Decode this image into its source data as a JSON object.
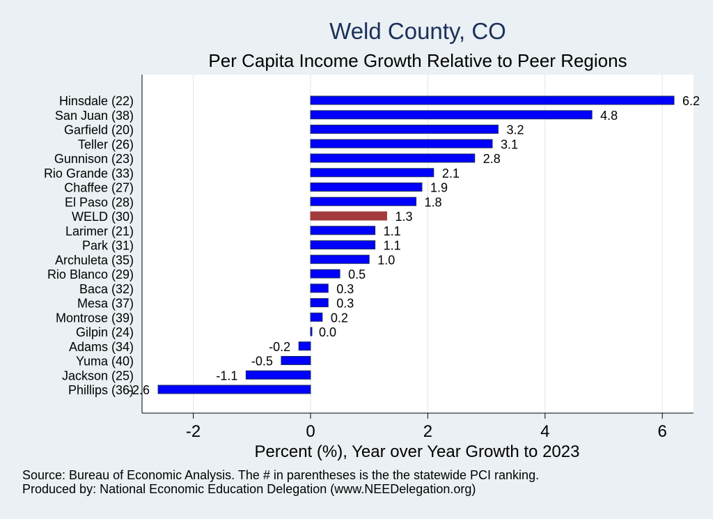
{
  "title": "Weld County, CO",
  "subtitle": "Per Capita Income Growth Relative to Peer Regions",
  "notes": {
    "source": "Source: Bureau of Economic Analysis. The # in parentheses is the the statewide PCI ranking.",
    "produced_by": "Produced by: National Economic Education Delegation (www.NEEDelegation.org)"
  },
  "colors": {
    "bar": "#0000ff",
    "highlight": "#a23a3e",
    "bar_border": "#1a2f5a",
    "plot_bg": "#ffffff",
    "page_bg": "#eaf0f3",
    "grid": "#dde6ec"
  },
  "chart_data": {
    "type": "bar",
    "orientation": "horizontal",
    "title": "Weld County, CO",
    "subtitle": "Per Capita Income Growth Relative to Peer Regions",
    "xlabel": "Percent (%), Year over Year Growth to 2023",
    "ylabel": "",
    "xlim": [
      -2.9,
      6.55
    ],
    "xticks": [
      -2,
      0,
      2,
      4,
      6
    ],
    "xtick_labels": [
      "-2",
      "0",
      "2",
      "4",
      "6"
    ],
    "grid": true,
    "highlight_category": "WELD (30)",
    "categories": [
      "Hinsdale (22)",
      "San Juan (38)",
      "Garfield (20)",
      "Teller (26)",
      "Gunnison (23)",
      "Rio Grande (33)",
      "Chaffee (27)",
      "El Paso (28)",
      "WELD (30)",
      "Larimer (21)",
      "Park (31)",
      "Archuleta (35)",
      "Rio Blanco (29)",
      "Baca (32)",
      "Mesa (37)",
      "Montrose (39)",
      "Gilpin (24)",
      "Adams (34)",
      "Yuma (40)",
      "Jackson (25)",
      "Phillips (36)"
    ],
    "values": [
      6.2,
      4.8,
      3.2,
      3.1,
      2.8,
      2.1,
      1.9,
      1.8,
      1.3,
      1.1,
      1.1,
      1.0,
      0.5,
      0.3,
      0.3,
      0.2,
      0.0,
      -0.2,
      -0.5,
      -1.1,
      -2.6
    ],
    "value_labels": [
      "6.2",
      "4.8",
      "3.2",
      "3.1",
      "2.8",
      "2.1",
      "1.9",
      "1.8",
      "1.3",
      "1.1",
      "1.1",
      "1.0",
      "0.5",
      "0.3",
      "0.3",
      "0.2",
      "0.0",
      "-0.2",
      "-0.5",
      "-1.1",
      "-2.6"
    ]
  }
}
